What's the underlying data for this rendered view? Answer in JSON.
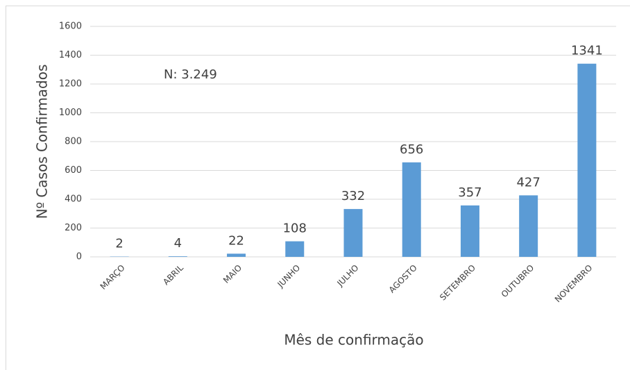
{
  "chart_data": {
    "type": "bar",
    "categories": [
      "MARÇO",
      "ABRIL",
      "MAIO",
      "JUNHO",
      "JULHO",
      "AGOSTO",
      "SETEMBRO",
      "OUTUBRO",
      "NOVEMBRO"
    ],
    "values": [
      2,
      4,
      22,
      108,
      332,
      656,
      357,
      427,
      1341
    ],
    "color": "#5b9bd5",
    "xlabel": "Mês de confirmação",
    "ylabel": "Nº Casos Confirmados",
    "annotation": "N: 3.249",
    "ylim": [
      0,
      1600
    ],
    "yticks": [
      0,
      200,
      400,
      600,
      800,
      1000,
      1200,
      1400,
      1600
    ],
    "grid": true,
    "data_labels": true
  }
}
